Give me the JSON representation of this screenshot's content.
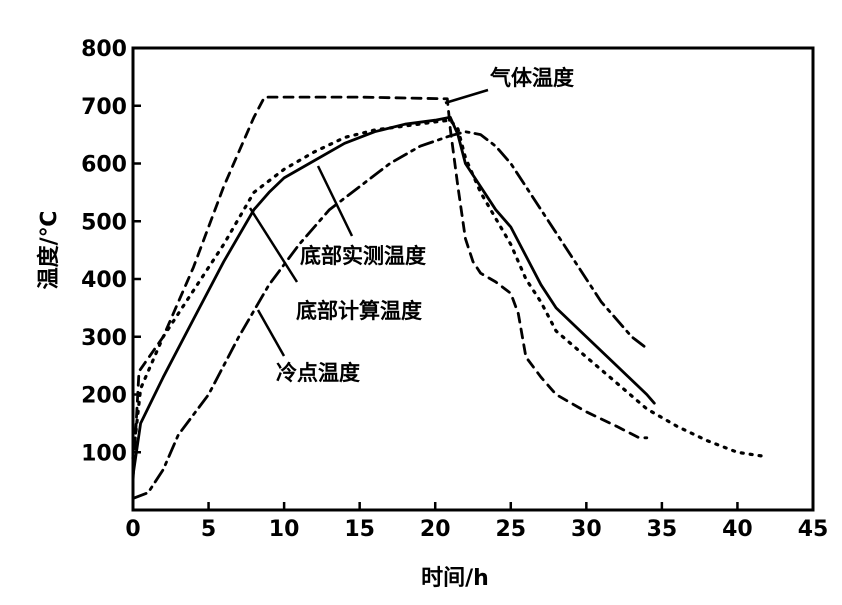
{
  "chart_data": {
    "type": "line",
    "xlabel": "时间/h",
    "ylabel": "温度/℃",
    "xlim": [
      0,
      45
    ],
    "ylim": [
      0,
      800
    ],
    "x_ticks": [
      "0",
      "5",
      "10",
      "15",
      "20",
      "25",
      "30",
      "35",
      "40",
      "45"
    ],
    "y_ticks": [
      "100",
      "200",
      "300",
      "400",
      "500",
      "600",
      "700",
      "800"
    ],
    "grid": false,
    "series": [
      {
        "name": "气体温度",
        "style": "dashed",
        "points": [
          [
            0,
            50
          ],
          [
            0.4,
            240
          ],
          [
            2,
            300
          ],
          [
            4,
            420
          ],
          [
            6,
            560
          ],
          [
            8,
            680
          ],
          [
            8.7,
            715
          ],
          [
            9,
            715
          ],
          [
            15,
            715
          ],
          [
            20.8,
            712
          ],
          [
            21,
            660
          ],
          [
            21.5,
            560
          ],
          [
            22,
            470
          ],
          [
            22.5,
            430
          ],
          [
            23,
            410
          ],
          [
            24,
            395
          ],
          [
            25,
            375
          ],
          [
            25.5,
            340
          ],
          [
            26,
            265
          ],
          [
            27,
            230
          ],
          [
            28,
            200
          ],
          [
            30,
            170
          ],
          [
            32,
            145
          ],
          [
            33.5,
            125
          ],
          [
            34,
            125
          ]
        ]
      },
      {
        "name": "底部实测温度",
        "style": "solid",
        "points": [
          [
            0,
            60
          ],
          [
            0.5,
            150
          ],
          [
            2,
            230
          ],
          [
            4,
            330
          ],
          [
            6,
            430
          ],
          [
            8,
            520
          ],
          [
            9,
            550
          ],
          [
            10,
            575
          ],
          [
            12,
            605
          ],
          [
            14,
            635
          ],
          [
            16,
            655
          ],
          [
            18,
            668
          ],
          [
            20,
            675
          ],
          [
            21,
            680
          ],
          [
            21.5,
            650
          ],
          [
            22,
            600
          ],
          [
            23,
            560
          ],
          [
            24,
            520
          ],
          [
            25,
            490
          ],
          [
            26,
            440
          ],
          [
            27,
            390
          ],
          [
            28,
            350
          ],
          [
            30,
            300
          ],
          [
            32,
            250
          ],
          [
            34,
            200
          ],
          [
            34.5,
            185
          ]
        ]
      },
      {
        "name": "底部计算温度",
        "style": "dotted",
        "points": [
          [
            0,
            90
          ],
          [
            0.5,
            210
          ],
          [
            2,
            300
          ],
          [
            4,
            380
          ],
          [
            6,
            460
          ],
          [
            8,
            550
          ],
          [
            10,
            590
          ],
          [
            12,
            620
          ],
          [
            14,
            645
          ],
          [
            16,
            658
          ],
          [
            18,
            665
          ],
          [
            20,
            672
          ],
          [
            21,
            675
          ],
          [
            21.5,
            660
          ],
          [
            22,
            610
          ],
          [
            23,
            550
          ],
          [
            24,
            505
          ],
          [
            25,
            460
          ],
          [
            26,
            400
          ],
          [
            27,
            360
          ],
          [
            28,
            310
          ],
          [
            30,
            265
          ],
          [
            32,
            220
          ],
          [
            34,
            175
          ],
          [
            36,
            145
          ],
          [
            38,
            120
          ],
          [
            40,
            100
          ],
          [
            42,
            92
          ]
        ]
      },
      {
        "name": "冷点温度",
        "style": "dash-dot",
        "points": [
          [
            0,
            20
          ],
          [
            1,
            30
          ],
          [
            2,
            70
          ],
          [
            3,
            130
          ],
          [
            5,
            200
          ],
          [
            7,
            300
          ],
          [
            9,
            390
          ],
          [
            11,
            460
          ],
          [
            13,
            520
          ],
          [
            15,
            560
          ],
          [
            17,
            600
          ],
          [
            19,
            630
          ],
          [
            21,
            648
          ],
          [
            22,
            655
          ],
          [
            23,
            650
          ],
          [
            24,
            630
          ],
          [
            25,
            600
          ],
          [
            26,
            560
          ],
          [
            27,
            520
          ],
          [
            28,
            480
          ],
          [
            29,
            440
          ],
          [
            30,
            400
          ],
          [
            31,
            360
          ],
          [
            32,
            330
          ],
          [
            33,
            300
          ],
          [
            34,
            280
          ]
        ]
      }
    ]
  },
  "annotations": {
    "gas": "气体温度",
    "bottom_measured": "底部实测温度",
    "bottom_calculated": "底部计算温度",
    "cold_point": "冷点温度"
  }
}
